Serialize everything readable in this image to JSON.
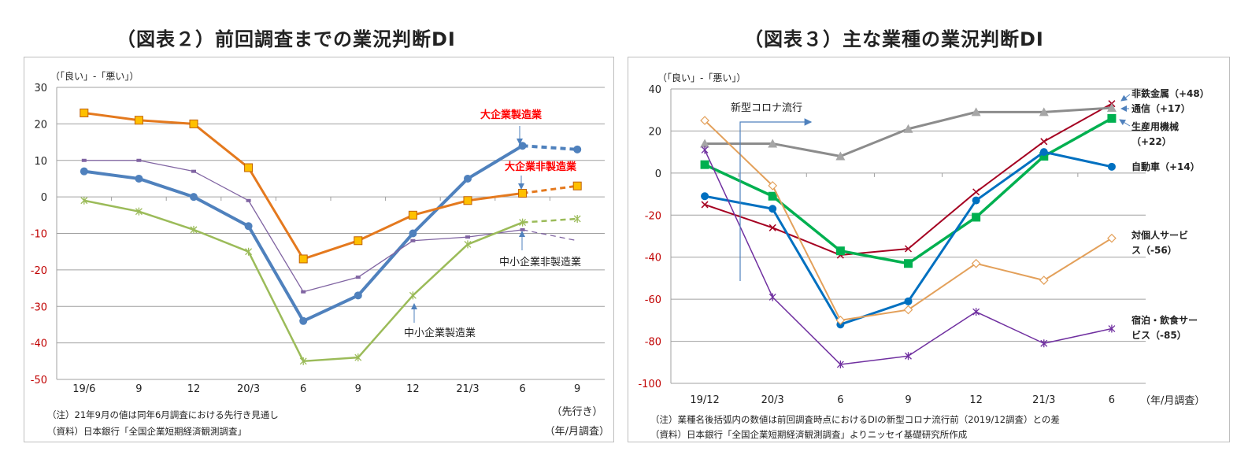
{
  "chart_data": [
    {
      "type": "line",
      "title": "（図表２）前回調査までの業況判断DI",
      "ylabel": "（「良い」-「悪い」）",
      "xlabel": "（年/月調査）",
      "forecast_label": "（先行き）",
      "categories": [
        "19/6",
        "9",
        "12",
        "20/3",
        "6",
        "9",
        "12",
        "21/3",
        "6",
        "9"
      ],
      "ylim": [
        -50,
        30
      ],
      "yticks": [
        30,
        20,
        10,
        0,
        -10,
        -20,
        -30,
        -40,
        -50
      ],
      "grid": true,
      "negative_tick_color": "#c00000",
      "series": [
        {
          "name": "大企業製造業",
          "color": "#4f81bd",
          "marker": "circle",
          "width": 4,
          "values": [
            7,
            5,
            0,
            -8,
            -34,
            -27,
            -10,
            5,
            14,
            13
          ],
          "forecast_from_index": 8,
          "label_color": "#ff0000"
        },
        {
          "name": "大企業非製造業",
          "color": "#e4791e",
          "marker": "square",
          "marker_fill": "#ffc000",
          "width": 3,
          "values": [
            23,
            21,
            20,
            8,
            -17,
            -12,
            -5,
            -1,
            1,
            3
          ],
          "forecast_from_index": 8,
          "label_color": "#ff0000"
        },
        {
          "name": "中小企業非製造業",
          "color": "#8064a2",
          "marker": "dash",
          "width": 1.3,
          "values": [
            10,
            10,
            7,
            -1,
            -26,
            -22,
            -12,
            -11,
            -9,
            -12
          ],
          "forecast_from_index": 8,
          "label_color": "#222222"
        },
        {
          "name": "中小企業製造業",
          "color": "#9bbb59",
          "marker": "star",
          "width": 2.5,
          "values": [
            -1,
            -4,
            -9,
            -15,
            -45,
            -44,
            -27,
            -13,
            -7,
            -6
          ],
          "forecast_from_index": 8,
          "label_color": "#222222"
        }
      ],
      "notes": [
        "（注）21年9月の値は同年6月調査における先行き見通し",
        "（資料）日本銀行「全国企業短期経済観測調査」"
      ]
    },
    {
      "type": "line",
      "title": "（図表３）主な業種の業況判断DI",
      "ylabel": "（「良い」-「悪い」）",
      "xlabel": "（年/月調査）",
      "categories": [
        "19/12",
        "20/3",
        "6",
        "9",
        "12",
        "21/3",
        "6"
      ],
      "ylim": [
        -100,
        40
      ],
      "yticks": [
        40,
        20,
        0,
        -20,
        -40,
        -60,
        -80,
        -100
      ],
      "grid": true,
      "negative_tick_color": "#c00000",
      "annotation": "新型コロナ流行",
      "series": [
        {
          "name": "非鉄金属（+48）",
          "color": "#a50021",
          "marker": "x",
          "width": 2,
          "values": [
            -15,
            -26,
            -39,
            -36,
            -9,
            15,
            33
          ]
        },
        {
          "name": "通信（+17）",
          "color": "#8c8c8c",
          "marker": "triangle",
          "width": 3,
          "values": [
            14,
            14,
            8,
            21,
            29,
            29,
            31
          ]
        },
        {
          "name": "生産用機械（+22）",
          "color": "#00b050",
          "marker": "square",
          "width": 3.5,
          "values": [
            4,
            -11,
            -37,
            -43,
            -21,
            8,
            26
          ]
        },
        {
          "name": "自動車（+14）",
          "color": "#0070c0",
          "marker": "circle",
          "width": 3,
          "values": [
            -11,
            -17,
            -72,
            -61,
            -13,
            10,
            3
          ]
        },
        {
          "name": "対個人サービス（-56）",
          "color": "#e3a05a",
          "marker": "diamond",
          "width": 2,
          "values": [
            25,
            -6,
            -70,
            -65,
            -43,
            -51,
            -31
          ]
        },
        {
          "name": "宿泊・飲食サービス（-85）",
          "color": "#7030a0",
          "marker": "star",
          "width": 1.5,
          "values": [
            11,
            -59,
            -91,
            -87,
            -66,
            -81,
            -74
          ]
        }
      ],
      "notes": [
        "（注）業種名後括弧内の数値は前回調査時点におけるDIの新型コロナ流行前（2019/12調査）との差",
        "（資料）日本銀行「全国企業短期経済観測調査」よりニッセイ基礎研究所作成"
      ]
    }
  ]
}
